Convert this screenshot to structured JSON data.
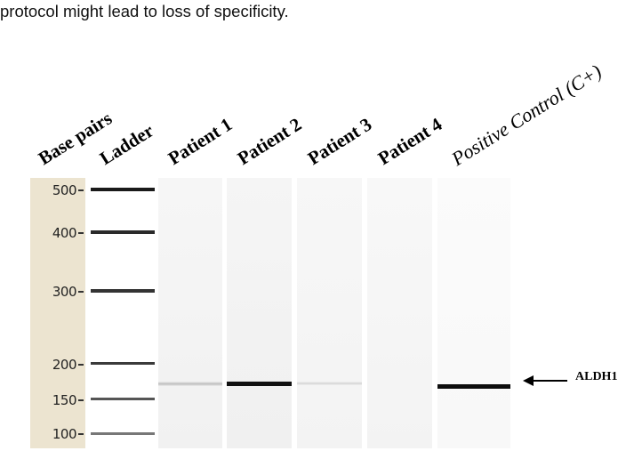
{
  "caption": {
    "text": "protocol might lead to loss of specificity."
  },
  "lane_labels": {
    "base_pairs": "Base pairs",
    "ladder": "Ladder",
    "patient1": "Patient 1",
    "patient2": "Patient 2",
    "patient3": "Patient 3",
    "patient4": "Patient 4",
    "positive_control": "Positive Control (C+)"
  },
  "ladder_ticks": [
    "500",
    "400",
    "300",
    "200",
    "150",
    "100"
  ],
  "band_label": "ALDH1",
  "colors": {
    "bp_panel": "#ece4d0",
    "lane_bg": "#f4f4f4"
  }
}
